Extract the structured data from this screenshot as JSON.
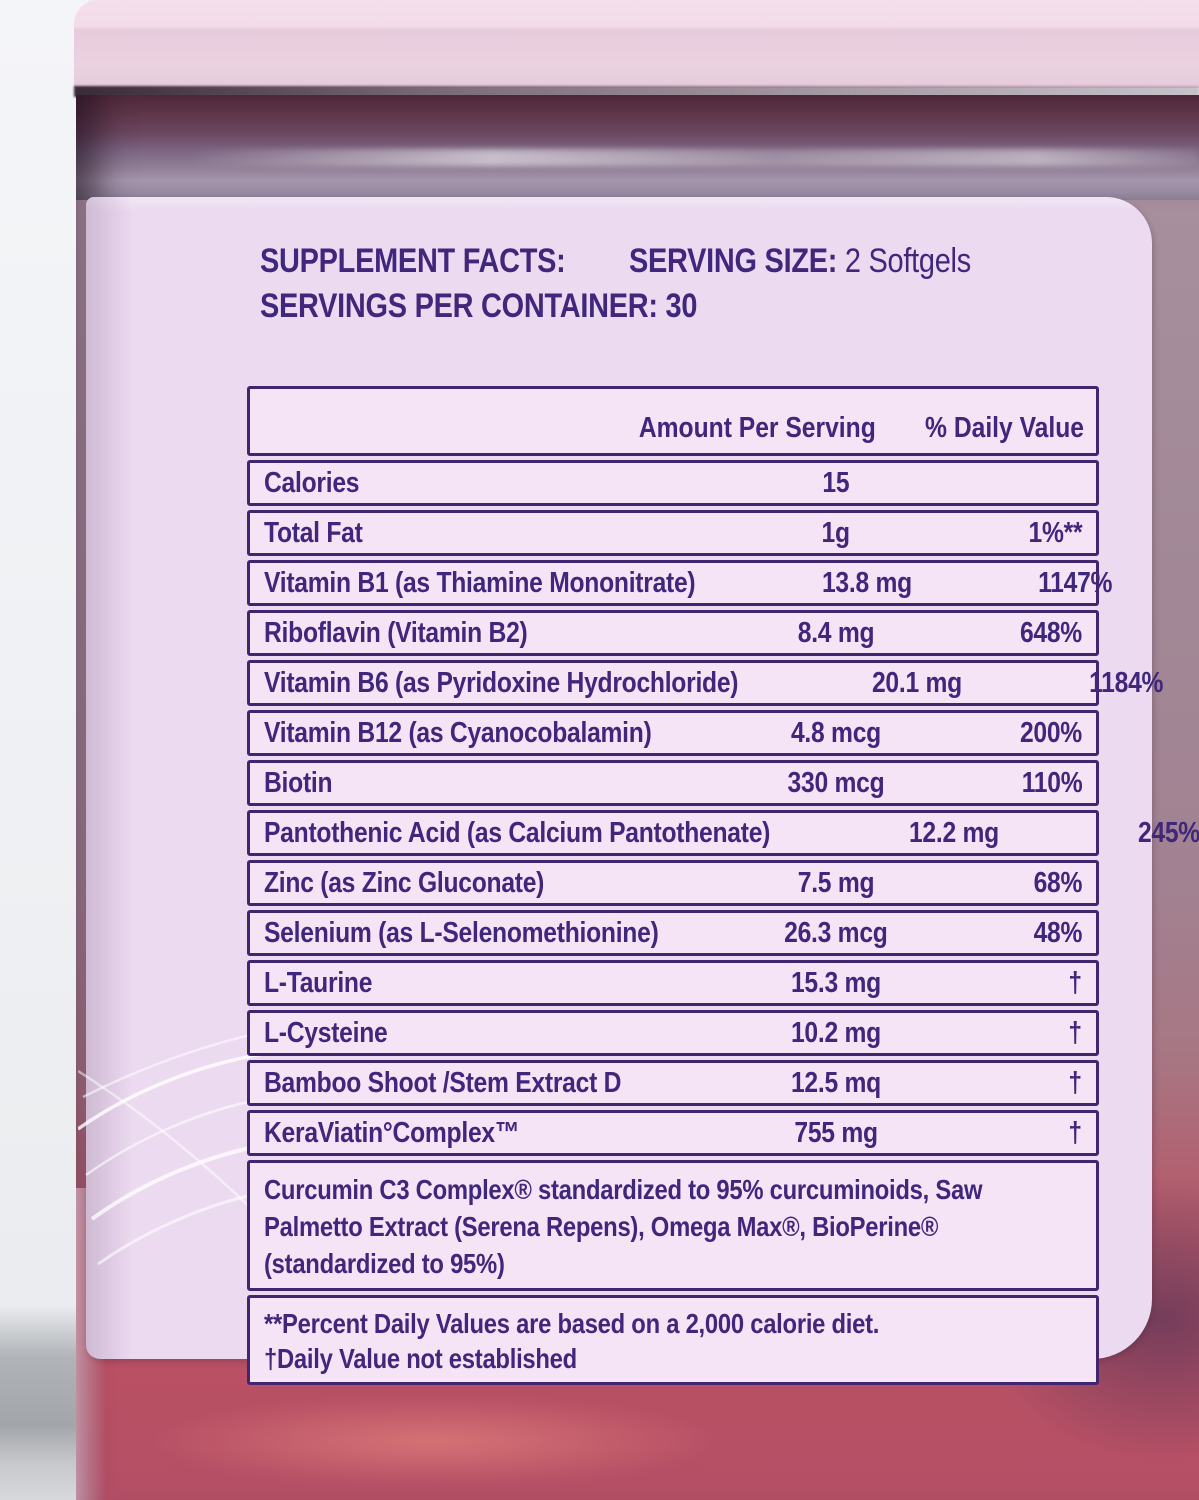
{
  "label": {
    "header": {
      "title": "SUPPLEMENT FACTS:",
      "serving_size_label": "SERVING SIZE:",
      "serving_size_value": "2 Softgels",
      "servings_label": "SERVINGS PER CONTAINER:",
      "servings_value": "30"
    },
    "table": {
      "col_amount": "Amount Per Serving",
      "col_dv": "% Daily Value",
      "rows": [
        {
          "name": "Calories",
          "amount": "15",
          "dv": ""
        },
        {
          "name": "Total Fat",
          "amount": "1g",
          "dv": "1%**"
        },
        {
          "name": "Vitamin B1 (as Thiamine Mononitrate)",
          "amount": "13.8 mg",
          "dv": "1147%"
        },
        {
          "name": "Riboflavin (Vitamin B2)",
          "amount": "8.4 mg",
          "dv": "648%"
        },
        {
          "name": "Vitamin B6 (as Pyridoxine Hydrochloride)",
          "amount": "20.1 mg",
          "dv": "1184%"
        },
        {
          "name": "Vitamin B12 (as Cyanocobalamin)",
          "amount": "4.8 mcg",
          "dv": "200%"
        },
        {
          "name": "Biotin",
          "amount": "330 mcg",
          "dv": "110%"
        },
        {
          "name": "Pantothenic Acid (as Calcium Pantothenate)",
          "amount": "12.2 mg",
          "dv": "245%"
        },
        {
          "name": "Zinc (as Zinc Gluconate)",
          "amount": "7.5 mg",
          "dv": "68%"
        },
        {
          "name": "Selenium (as L-Selenomethionine)",
          "amount": "26.3 mcg",
          "dv": "48%"
        },
        {
          "name": "L-Taurine",
          "amount": "15.3 mg",
          "dv": "†"
        },
        {
          "name": "L-Cysteine",
          "amount": "10.2 mg",
          "dv": "†"
        },
        {
          "name": "Bamboo Shoot /Stem Extract D",
          "amount": "12.5 mq",
          "dv": "†"
        },
        {
          "name": "KeraViatin°Complex™",
          "amount": "755 mg",
          "dv": "†"
        }
      ],
      "blend_note": "Curcumin C3 Complex® standardized to 95% curcuminoids, Saw Palmetto Extract (Serena Repens), Omega Max®, BioPerine® (standardized to 95%)",
      "footnotes": [
        "**Percent Daily Values are based on a 2,000 calorie diet.",
        "†Daily Value not established"
      ]
    }
  },
  "colors": {
    "text": "#40277b",
    "border": "#41256f",
    "label_bg": "#ecdaf1",
    "row_bg": "#f5e3f6",
    "cap_pink": "#ecd2e2",
    "neck_purple": "#7e6885",
    "softgel_red": "#b84f62",
    "background_gray": "#eef0f4"
  }
}
